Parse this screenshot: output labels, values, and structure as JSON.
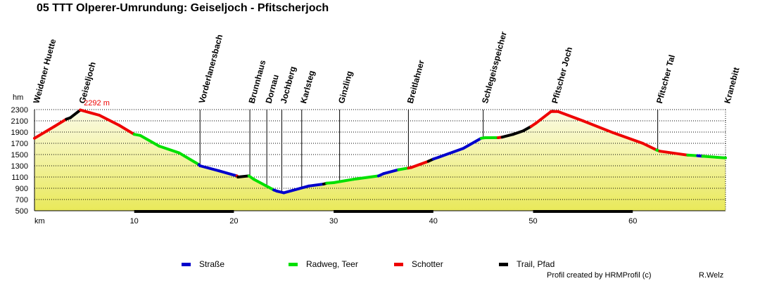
{
  "chart_data": {
    "type": "area",
    "title": "05 TTT Olperer-Umrundung: Geiseljoch - Pfitscherjoch",
    "ylabel": "hm",
    "xlabel": "km",
    "ylim": [
      500,
      2300
    ],
    "xlim": [
      0,
      69.3
    ],
    "yticks": [
      500,
      700,
      900,
      1100,
      1300,
      1500,
      1700,
      1900,
      2100,
      2300
    ],
    "xticks": [
      10,
      20,
      30,
      40,
      50,
      60
    ],
    "max_annotation": {
      "km": 4.6,
      "label": "2292 m"
    },
    "profile": [
      [
        0,
        1790,
        "red"
      ],
      [
        2.0,
        2000,
        "red"
      ],
      [
        3.2,
        2130,
        "red"
      ],
      [
        3.6,
        2155,
        "black"
      ],
      [
        4.6,
        2292,
        "black"
      ],
      [
        6.5,
        2200,
        "red"
      ],
      [
        8.5,
        2020,
        "red"
      ],
      [
        10.0,
        1860,
        "red"
      ],
      [
        10.6,
        1840,
        "green"
      ],
      [
        12.5,
        1650,
        "green"
      ],
      [
        14.5,
        1530,
        "green"
      ],
      [
        16.5,
        1320,
        "green"
      ],
      [
        16.6,
        1300,
        "blue"
      ],
      [
        18.5,
        1210,
        "blue"
      ],
      [
        20.3,
        1120,
        "blue"
      ],
      [
        20.4,
        1100,
        "red"
      ],
      [
        21.5,
        1120,
        "black"
      ],
      [
        22.0,
        1060,
        "green"
      ],
      [
        24.0,
        870,
        "green"
      ],
      [
        24.3,
        850,
        "blue"
      ],
      [
        25.0,
        820,
        "blue"
      ],
      [
        27.5,
        940,
        "blue"
      ],
      [
        29.0,
        975,
        "blue"
      ],
      [
        29.3,
        990,
        "black"
      ],
      [
        30.0,
        1000,
        "green"
      ],
      [
        32.0,
        1060,
        "green"
      ],
      [
        34.5,
        1120,
        "green"
      ],
      [
        35.0,
        1160,
        "blue"
      ],
      [
        36.5,
        1230,
        "blue"
      ],
      [
        37.5,
        1260,
        "green"
      ],
      [
        37.8,
        1270,
        "red"
      ],
      [
        39.5,
        1380,
        "red"
      ],
      [
        40.0,
        1420,
        "black"
      ],
      [
        40.5,
        1450,
        "blue"
      ],
      [
        43.0,
        1610,
        "blue"
      ],
      [
        44.8,
        1790,
        "blue"
      ],
      [
        45.2,
        1800,
        "green"
      ],
      [
        46.5,
        1800,
        "green"
      ],
      [
        46.9,
        1810,
        "red"
      ],
      [
        48.0,
        1860,
        "black"
      ],
      [
        49.0,
        1920,
        "black"
      ],
      [
        49.8,
        2000,
        "black"
      ],
      [
        50.3,
        2060,
        "red"
      ],
      [
        51.8,
        2265,
        "red"
      ],
      [
        52.5,
        2265,
        "red"
      ],
      [
        55.0,
        2100,
        "red"
      ],
      [
        58.0,
        1890,
        "red"
      ],
      [
        61.0,
        1700,
        "red"
      ],
      [
        62.4,
        1580,
        "red"
      ],
      [
        62.7,
        1560,
        "green"
      ],
      [
        65.5,
        1490,
        "red"
      ],
      [
        66.5,
        1480,
        "green"
      ],
      [
        67.0,
        1470,
        "blue"
      ],
      [
        69.3,
        1440,
        "green"
      ]
    ],
    "waypoints": [
      {
        "name": "Weidener Huette",
        "km": 0
      },
      {
        "name": "Geiseljoch",
        "km": 4.6
      },
      {
        "name": "Vorderlanersbach",
        "km": 16.6
      },
      {
        "name": "Brunnhaus",
        "km": 21.6
      },
      {
        "name": "Dornau",
        "km": 23.3
      },
      {
        "name": "Jochberg",
        "km": 24.8
      },
      {
        "name": "Karlsteg",
        "km": 26.8
      },
      {
        "name": "Ginzling",
        "km": 30.6
      },
      {
        "name": "Breitlahner",
        "km": 37.5
      },
      {
        "name": "Schlegeisspeicher",
        "km": 45.0
      },
      {
        "name": "Pfitscher Joch",
        "km": 52.0
      },
      {
        "name": "Pfitscher Tal",
        "km": 62.5
      },
      {
        "name": "Kranebitt",
        "km": 69.3
      }
    ],
    "legend": [
      {
        "label": "Straße",
        "color": "#0000cc"
      },
      {
        "label": "Radweg, Teer",
        "color": "#00e000"
      },
      {
        "label": "Schotter",
        "color": "#ee0000"
      },
      {
        "label": "Trail, Pfad",
        "color": "#000000"
      }
    ],
    "surface_colors": {
      "blue": "#0000cc",
      "green": "#00e000",
      "red": "#ee0000",
      "black": "#000000"
    },
    "fill_color": "#f1f1a8"
  },
  "footer": {
    "credit": "Profil created by HRMProfil (c)",
    "author": "R.Welz"
  }
}
